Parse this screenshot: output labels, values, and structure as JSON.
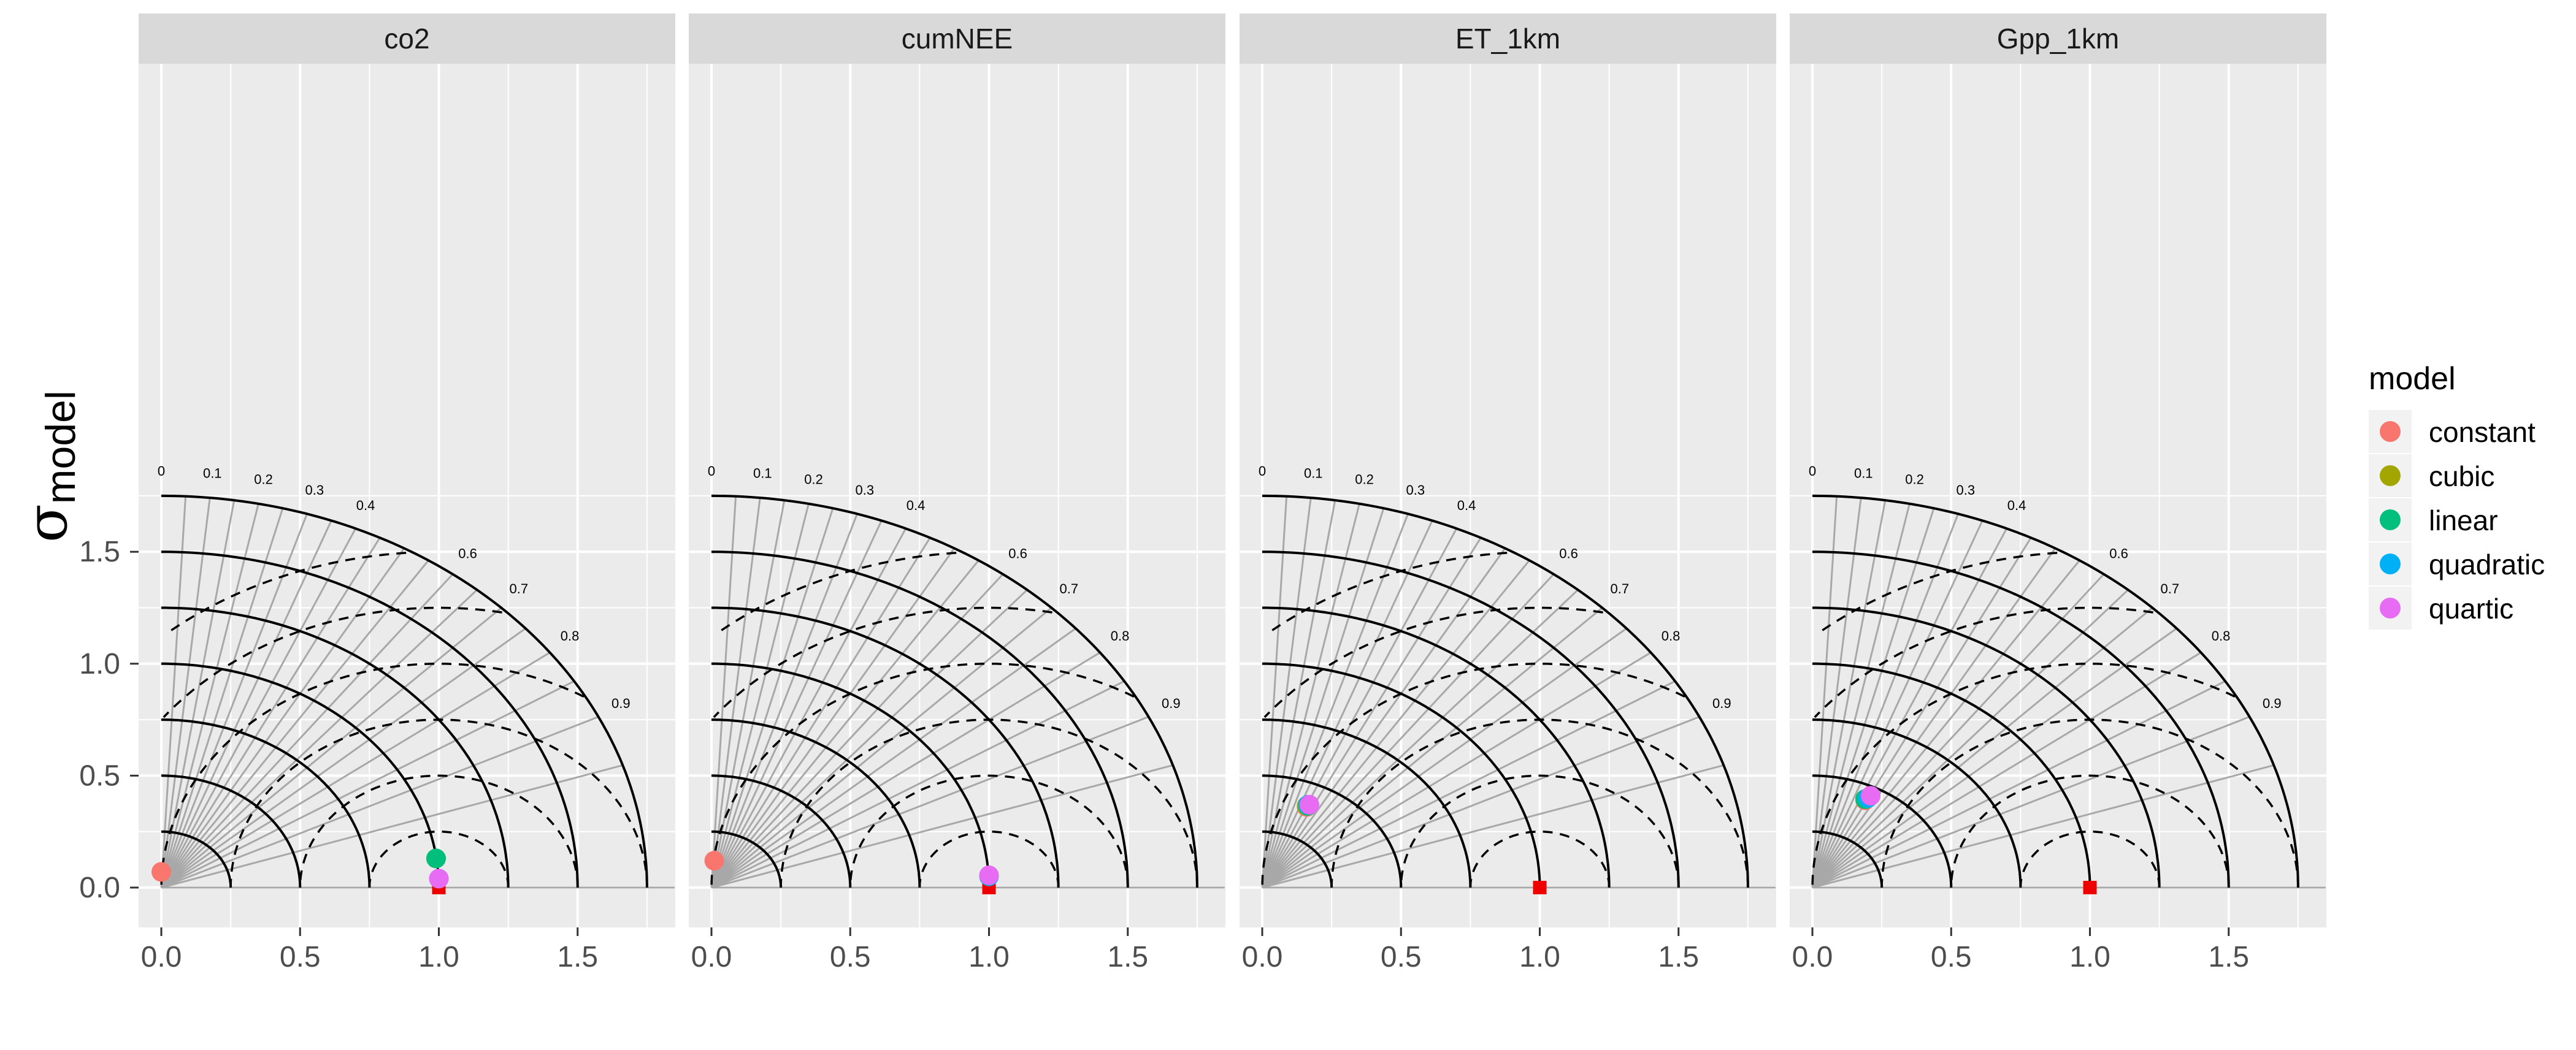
{
  "chart_data": {
    "type": "scatter",
    "subtype": "taylor-diagram",
    "facets": [
      "co2",
      "cumNEE",
      "ET_1km",
      "Gpp_1km"
    ],
    "ylabel_symbol": "σ",
    "ylabel_subscript": "model",
    "xlabel": "",
    "xlim": [
      0,
      1.85
    ],
    "ylim": [
      -0.07,
      1.85
    ],
    "x_ticks": [
      "0.0",
      "0.5",
      "1.0",
      "1.5"
    ],
    "y_ticks": [
      "0.0",
      "0.5",
      "1.0",
      "1.5"
    ],
    "grid": true,
    "sd_arcs": [
      0.25,
      0.5,
      0.75,
      1.0,
      1.25,
      1.5,
      1.75
    ],
    "rms_arcs": [
      0.25,
      0.5,
      0.75,
      1.0,
      1.25,
      1.5
    ],
    "correlation_labels": [
      "0",
      "0.1",
      "0.2",
      "0.3",
      "0.4",
      "0.6",
      "0.7",
      "0.8",
      "0.9"
    ],
    "reference_point": {
      "x": 1.0,
      "y": 0.0,
      "color": "#ee0000"
    },
    "legend": {
      "title": "model",
      "position": "right",
      "entries": [
        {
          "name": "constant",
          "color": "#f8766d"
        },
        {
          "name": "cubic",
          "color": "#a3a500"
        },
        {
          "name": "linear",
          "color": "#00bf7d"
        },
        {
          "name": "quadratic",
          "color": "#00b0f6"
        },
        {
          "name": "quartic",
          "color": "#e76bf3"
        }
      ]
    },
    "points": [
      {
        "facet": "co2",
        "model": "constant",
        "x": 0.0,
        "y": 0.07
      },
      {
        "facet": "co2",
        "model": "cubic",
        "x": 0.99,
        "y": 0.13
      },
      {
        "facet": "co2",
        "model": "linear",
        "x": 0.99,
        "y": 0.13
      },
      {
        "facet": "co2",
        "model": "quadratic",
        "x": 1.0,
        "y": 0.04
      },
      {
        "facet": "co2",
        "model": "quartic",
        "x": 1.0,
        "y": 0.04
      },
      {
        "facet": "cumNEE",
        "model": "constant",
        "x": 0.01,
        "y": 0.12
      },
      {
        "facet": "cumNEE",
        "model": "quadratic",
        "x": 1.0,
        "y": 0.05
      },
      {
        "facet": "cumNEE",
        "model": "quartic",
        "x": 1.0,
        "y": 0.055
      },
      {
        "facet": "ET_1km",
        "model": "constant",
        "x": 0.16,
        "y": 0.36
      },
      {
        "facet": "ET_1km",
        "model": "cubic",
        "x": 0.16,
        "y": 0.365
      },
      {
        "facet": "ET_1km",
        "model": "linear",
        "x": 0.165,
        "y": 0.365
      },
      {
        "facet": "ET_1km",
        "model": "quadratic",
        "x": 0.165,
        "y": 0.37
      },
      {
        "facet": "ET_1km",
        "model": "quartic",
        "x": 0.17,
        "y": 0.37
      },
      {
        "facet": "Gpp_1km",
        "model": "constant",
        "x": 0.19,
        "y": 0.39
      },
      {
        "facet": "Gpp_1km",
        "model": "cubic",
        "x": 0.19,
        "y": 0.395
      },
      {
        "facet": "Gpp_1km",
        "model": "linear",
        "x": 0.19,
        "y": 0.395
      },
      {
        "facet": "Gpp_1km",
        "model": "quadratic",
        "x": 0.2,
        "y": 0.4
      },
      {
        "facet": "Gpp_1km",
        "model": "quartic",
        "x": 0.21,
        "y": 0.41
      }
    ]
  }
}
